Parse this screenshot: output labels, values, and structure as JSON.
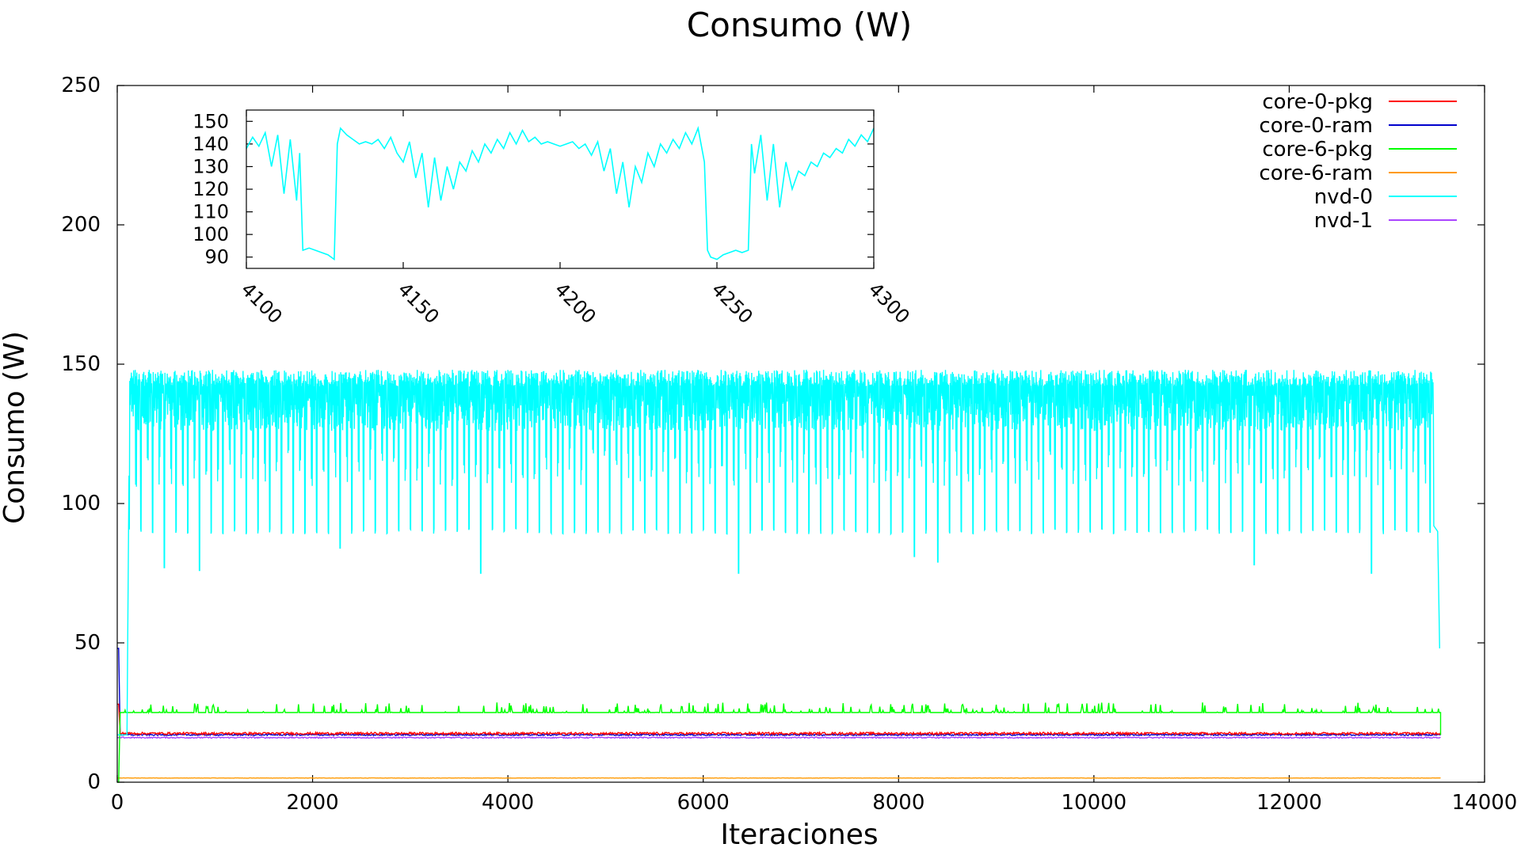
{
  "chart_data": [
    {
      "type": "line",
      "title": "Consumo (W)",
      "xlabel": "Iteraciones",
      "ylabel": "Consumo (W)",
      "xlim": [
        0,
        14000
      ],
      "ylim": [
        0,
        250
      ],
      "x_ticks": [
        0,
        2000,
        4000,
        6000,
        8000,
        10000,
        12000,
        14000
      ],
      "y_ticks": [
        0,
        50,
        100,
        150,
        200,
        250
      ],
      "legend_position": "top-right",
      "grid": false,
      "series": [
        {
          "name": "core-0-pkg",
          "color": "#ff0000",
          "pattern": {
            "start_value": 28,
            "baseline": 17.5,
            "noise": 0.8,
            "x_end": 13550,
            "end_drop": 17.5
          }
        },
        {
          "name": "core-0-ram",
          "color": "#0000cc",
          "pattern": {
            "start_value": 48,
            "baseline": 17,
            "noise": 0.5,
            "x_end": 13550,
            "end_drop": 17
          }
        },
        {
          "name": "core-6-pkg",
          "color": "#00ff00",
          "pattern": {
            "start_value": 0,
            "baseline": 25,
            "noise": 3,
            "x_end": 13550,
            "end_drop": 17
          }
        },
        {
          "name": "core-6-ram",
          "color": "#ff9900",
          "pattern": {
            "start_value": 1.5,
            "baseline": 1.5,
            "noise": 0.1,
            "x_end": 13550,
            "end_drop": 1.5
          }
        },
        {
          "name": "nvd-0",
          "color": "#00ffff",
          "pattern": {
            "start_value": 17,
            "ramp_x": 120,
            "upper": 148,
            "lower": 108,
            "trough": 89,
            "spike_period": 120,
            "x_end": 13480,
            "tail_value": 92,
            "final_value": 48,
            "occasional_troughs": [
              [
                520,
                77
              ],
              [
                780,
                76
              ],
              [
                2270,
                84
              ],
              [
                3720,
                75
              ],
              [
                6390,
                75
              ],
              [
                8130,
                81
              ],
              [
                8420,
                79
              ],
              [
                11600,
                78
              ],
              [
                12800,
                75
              ]
            ]
          }
        },
        {
          "name": "nvd-1",
          "color": "#aa44ff",
          "pattern": {
            "start_value": 16,
            "baseline": 16,
            "noise": 0.4,
            "x_end": 13550,
            "end_drop": 16
          }
        }
      ]
    },
    {
      "type": "line",
      "title": "",
      "xlim": [
        4100,
        4300
      ],
      "ylim": [
        85,
        155
      ],
      "x_ticks": [
        4100,
        4150,
        4200,
        4250,
        4300
      ],
      "y_ticks": [
        90,
        100,
        110,
        120,
        130,
        140,
        150
      ],
      "series": [
        {
          "name": "nvd-0",
          "color": "#00ffff",
          "x": [
            4100,
            4102,
            4104,
            4106,
            4108,
            4110,
            4112,
            4114,
            4116,
            4117,
            4118,
            4120,
            4122,
            4124,
            4126,
            4128,
            4129,
            4130,
            4132,
            4134,
            4136,
            4138,
            4140,
            4142,
            4144,
            4146,
            4148,
            4150,
            4152,
            4154,
            4156,
            4158,
            4160,
            4162,
            4164,
            4166,
            4168,
            4170,
            4172,
            4174,
            4176,
            4178,
            4180,
            4182,
            4184,
            4186,
            4188,
            4190,
            4192,
            4194,
            4196,
            4198,
            4200,
            4202,
            4204,
            4206,
            4208,
            4210,
            4212,
            4214,
            4216,
            4218,
            4220,
            4222,
            4224,
            4226,
            4228,
            4230,
            4232,
            4234,
            4236,
            4238,
            4240,
            4242,
            4244,
            4246,
            4247,
            4248,
            4250,
            4252,
            4254,
            4256,
            4258,
            4260,
            4261,
            4262,
            4264,
            4266,
            4268,
            4270,
            4272,
            4274,
            4276,
            4278,
            4280,
            4282,
            4284,
            4286,
            4288,
            4290,
            4292,
            4294,
            4296,
            4298,
            4300
          ],
          "y": [
            138,
            143,
            139,
            145,
            130,
            144,
            118,
            142,
            115,
            136,
            93,
            94,
            93,
            92,
            91,
            89,
            140,
            147,
            144,
            142,
            140,
            141,
            140,
            142,
            138,
            143,
            136,
            132,
            141,
            125,
            136,
            112,
            134,
            115,
            130,
            120,
            132,
            128,
            137,
            132,
            140,
            136,
            142,
            138,
            145,
            140,
            146,
            141,
            143,
            140,
            141,
            140,
            139,
            140,
            141,
            138,
            140,
            135,
            141,
            128,
            138,
            118,
            132,
            112,
            130,
            123,
            136,
            130,
            140,
            136,
            142,
            138,
            145,
            140,
            147,
            132,
            93,
            90,
            89,
            91,
            92,
            93,
            92,
            93,
            140,
            127,
            144,
            115,
            140,
            112,
            132,
            120,
            128,
            126,
            132,
            130,
            136,
            134,
            138,
            136,
            142,
            139,
            144,
            141,
            147
          ]
        }
      ]
    }
  ]
}
